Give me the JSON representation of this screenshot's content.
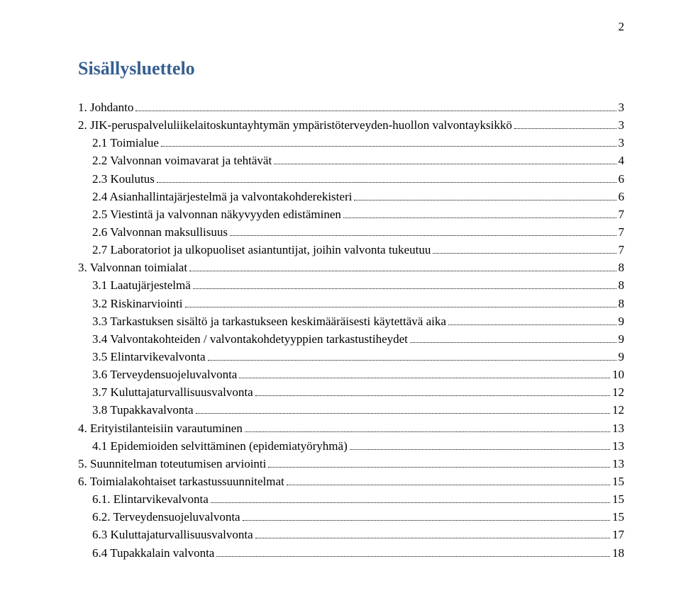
{
  "page_number": "2",
  "title": "Sisällysluettelo",
  "colors": {
    "title_color": "#365f91",
    "text_color": "#000000",
    "background": "#ffffff"
  },
  "typography": {
    "title_fontsize_pt": 20,
    "body_fontsize_pt": 13,
    "font_family": "Times New Roman"
  },
  "toc": [
    {
      "indent": 0,
      "label": "1. Johdanto",
      "page": "3"
    },
    {
      "indent": 0,
      "label": "2. JIK-peruspalveluliikelaitoskuntayhtymän ympäristöterveyden-huollon valvontayksikkö",
      "page": "3"
    },
    {
      "indent": 1,
      "label": "2.1 Toimialue",
      "page": "3"
    },
    {
      "indent": 1,
      "label": "2.2 Valvonnan voimavarat ja tehtävät",
      "page": "4"
    },
    {
      "indent": 1,
      "label": "2.3 Koulutus",
      "page": "6"
    },
    {
      "indent": 1,
      "label": "2.4 Asianhallintajärjestelmä ja valvontakohderekisteri",
      "page": "6"
    },
    {
      "indent": 1,
      "label": "2.5 Viestintä ja valvonnan näkyvyyden edistäminen",
      "page": "7"
    },
    {
      "indent": 1,
      "label": "2.6 Valvonnan maksullisuus",
      "page": "7"
    },
    {
      "indent": 1,
      "label": "2.7 Laboratoriot ja ulkopuoliset asiantuntijat, joihin valvonta tukeutuu",
      "page": "7"
    },
    {
      "indent": 0,
      "label": "3. Valvonnan toimialat",
      "page": "8"
    },
    {
      "indent": 1,
      "label": "3.1 Laatujärjestelmä",
      "page": "8"
    },
    {
      "indent": 1,
      "label": "3.2 Riskinarviointi",
      "page": "8"
    },
    {
      "indent": 1,
      "label": "3.3 Tarkastuksen sisältö ja tarkastukseen keskimääräisesti käytettävä aika",
      "page": "9"
    },
    {
      "indent": 1,
      "label": "3.4 Valvontakohteiden / valvontakohdetyyppien tarkastustiheydet",
      "page": "9"
    },
    {
      "indent": 1,
      "label": "3.5 Elintarvikevalvonta",
      "page": "9"
    },
    {
      "indent": 1,
      "label": "3.6 Terveydensuojeluvalvonta",
      "page": "10"
    },
    {
      "indent": 1,
      "label": "3.7 Kuluttajaturvallisuusvalvonta",
      "page": "12"
    },
    {
      "indent": 1,
      "label": "3.8 Tupakkavalvonta",
      "page": "12"
    },
    {
      "indent": 0,
      "label": "4. Erityistilanteisiin varautuminen",
      "page": "13"
    },
    {
      "indent": 1,
      "label": "4.1 Epidemioiden selvittäminen (epidemiatyöryhmä)",
      "page": "13"
    },
    {
      "indent": 0,
      "label": "5. Suunnitelman toteutumisen arviointi",
      "page": "13"
    },
    {
      "indent": 0,
      "label": "6. Toimialakohtaiset tarkastussuunnitelmat",
      "page": "15"
    },
    {
      "indent": 1,
      "label": "6.1. Elintarvikevalvonta",
      "page": "15"
    },
    {
      "indent": 1,
      "label": "6.2. Terveydensuojeluvalvonta",
      "page": "15"
    },
    {
      "indent": 1,
      "label": "6.3 Kuluttajaturvallisuusvalvonta",
      "page": "17"
    },
    {
      "indent": 1,
      "label": "6.4 Tupakkalain valvonta",
      "page": "18"
    }
  ]
}
